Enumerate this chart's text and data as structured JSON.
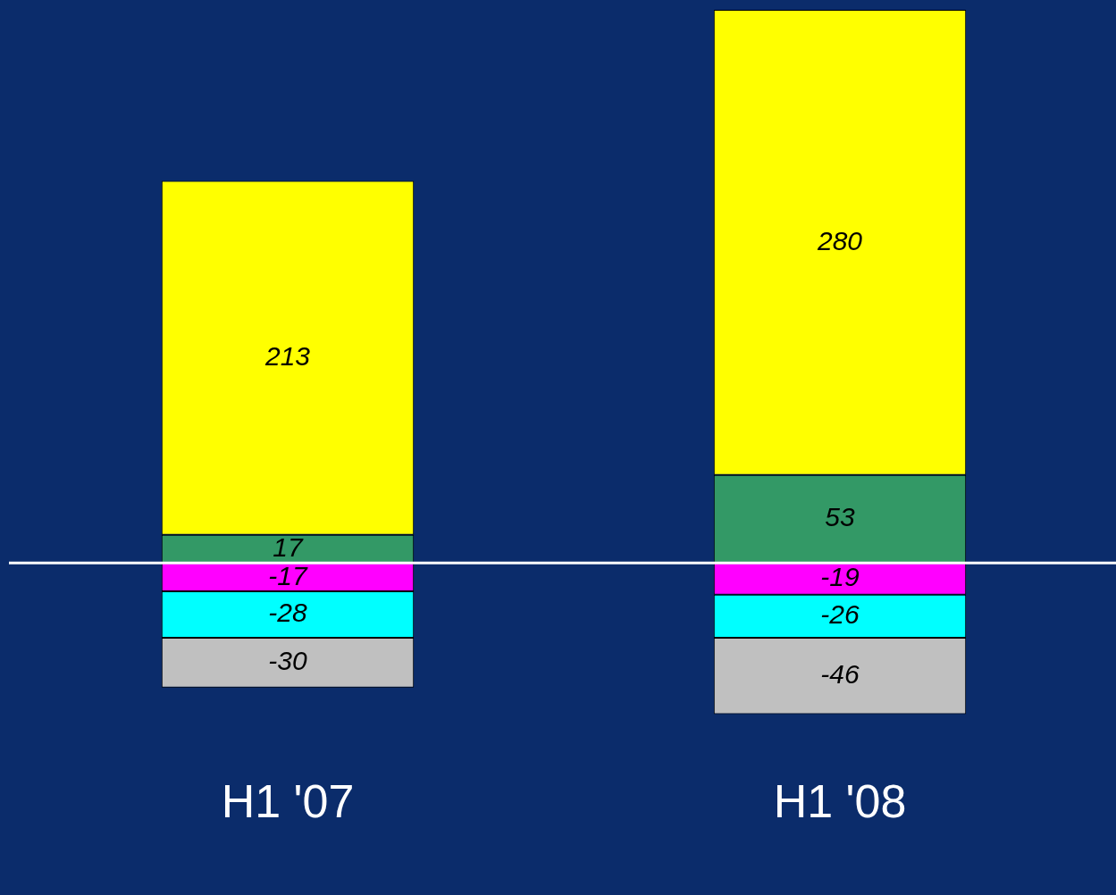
{
  "chart_data": {
    "type": "bar",
    "stacked": true,
    "data_labels": true,
    "grid": false,
    "legend": false,
    "categories": [
      "H1 '07",
      "H1 '08"
    ],
    "series": [
      {
        "color": "#339966",
        "values": [
          17,
          53
        ]
      },
      {
        "color": "#ffff00",
        "values": [
          213,
          280
        ]
      },
      {
        "color": "#ff00ff",
        "values": [
          -17,
          -19
        ]
      },
      {
        "color": "#00ffff",
        "values": [
          -28,
          -26
        ]
      },
      {
        "color": "#c0c0c0",
        "values": [
          -30,
          -46
        ]
      }
    ]
  }
}
